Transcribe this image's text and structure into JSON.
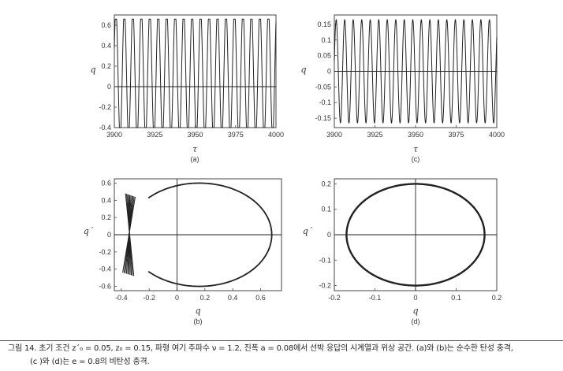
{
  "chart_data": [
    {
      "id": "a",
      "type": "line",
      "panel_label": "(a)",
      "xlabel": "τ",
      "ylabel": "q",
      "xlim": [
        3900,
        4000
      ],
      "ylim": [
        -0.4,
        0.7
      ],
      "xticks": [
        "3900",
        "3925",
        "3950",
        "3975",
        "4000"
      ],
      "yticks": [
        "-0.4",
        "-0.2",
        "0",
        "0.2",
        "0.4",
        "0.6"
      ],
      "series": [
        {
          "period": 5.24,
          "max": 0.66,
          "min": -0.4,
          "shape": "impact-clipped"
        }
      ],
      "zero_line": true
    },
    {
      "id": "c",
      "type": "line",
      "panel_label": "(c)",
      "xlabel": "τ",
      "ylabel": "q",
      "xlim": [
        3900,
        4000
      ],
      "ylim": [
        -0.18,
        0.18
      ],
      "xticks": [
        "3900",
        "3925",
        "3950",
        "3975",
        "4000"
      ],
      "yticks": [
        "0.15",
        "0.1",
        "0.05",
        "0",
        "-0.05",
        "-0.1",
        "-0.15"
      ],
      "series": [
        {
          "period": 5.24,
          "max": 0.165,
          "min": -0.165,
          "shape": "sine"
        }
      ],
      "zero_line": true
    },
    {
      "id": "b",
      "type": "line",
      "panel_label": "(b)",
      "xlabel": "q",
      "ylabel": "q´",
      "xlim": [
        -0.45,
        0.75
      ],
      "ylim": [
        -0.65,
        0.65
      ],
      "xticks": [
        "-0.4",
        "-0.2",
        "0",
        "0.2",
        "0.4",
        "0.6"
      ],
      "yticks": [
        "0.6",
        "0.4",
        "0.2",
        "0",
        "-0.2",
        "-0.4",
        "-0.6"
      ],
      "orbit": {
        "q_max": 0.68,
        "q_min": -0.4,
        "v_max": 0.6,
        "rebound_q": [
          -0.4,
          -0.3
        ],
        "rebound_v": [
          -0.48,
          0.48
        ]
      },
      "crosshair": true
    },
    {
      "id": "d",
      "type": "line",
      "panel_label": "(d)",
      "xlabel": "q",
      "ylabel": "q´",
      "xlim": [
        -0.2,
        0.2
      ],
      "ylim": [
        -0.22,
        0.22
      ],
      "xticks": [
        "-0.2",
        "-0.1",
        "0",
        "0.1",
        "0.2"
      ],
      "yticks": [
        "0.2",
        "0.1",
        "0",
        "-0.1",
        "-0.2"
      ],
      "orbit": {
        "q_amp": 0.17,
        "v_amp": 0.2
      },
      "crosshair": true
    }
  ],
  "caption": {
    "line1": "그림 14. 초기 조건 z´₀ = 0.05, z₀ = 0.15, 파형 여기 주파수 ν = 1.2, 진폭 a = 0.08에서 선박 응답의 시계열과 위상 공간. (a)와 (b)는 순수한 탄성 충격,",
    "line2": "(c )와 (d)는 e = 0.8의 비탄성 충격."
  }
}
